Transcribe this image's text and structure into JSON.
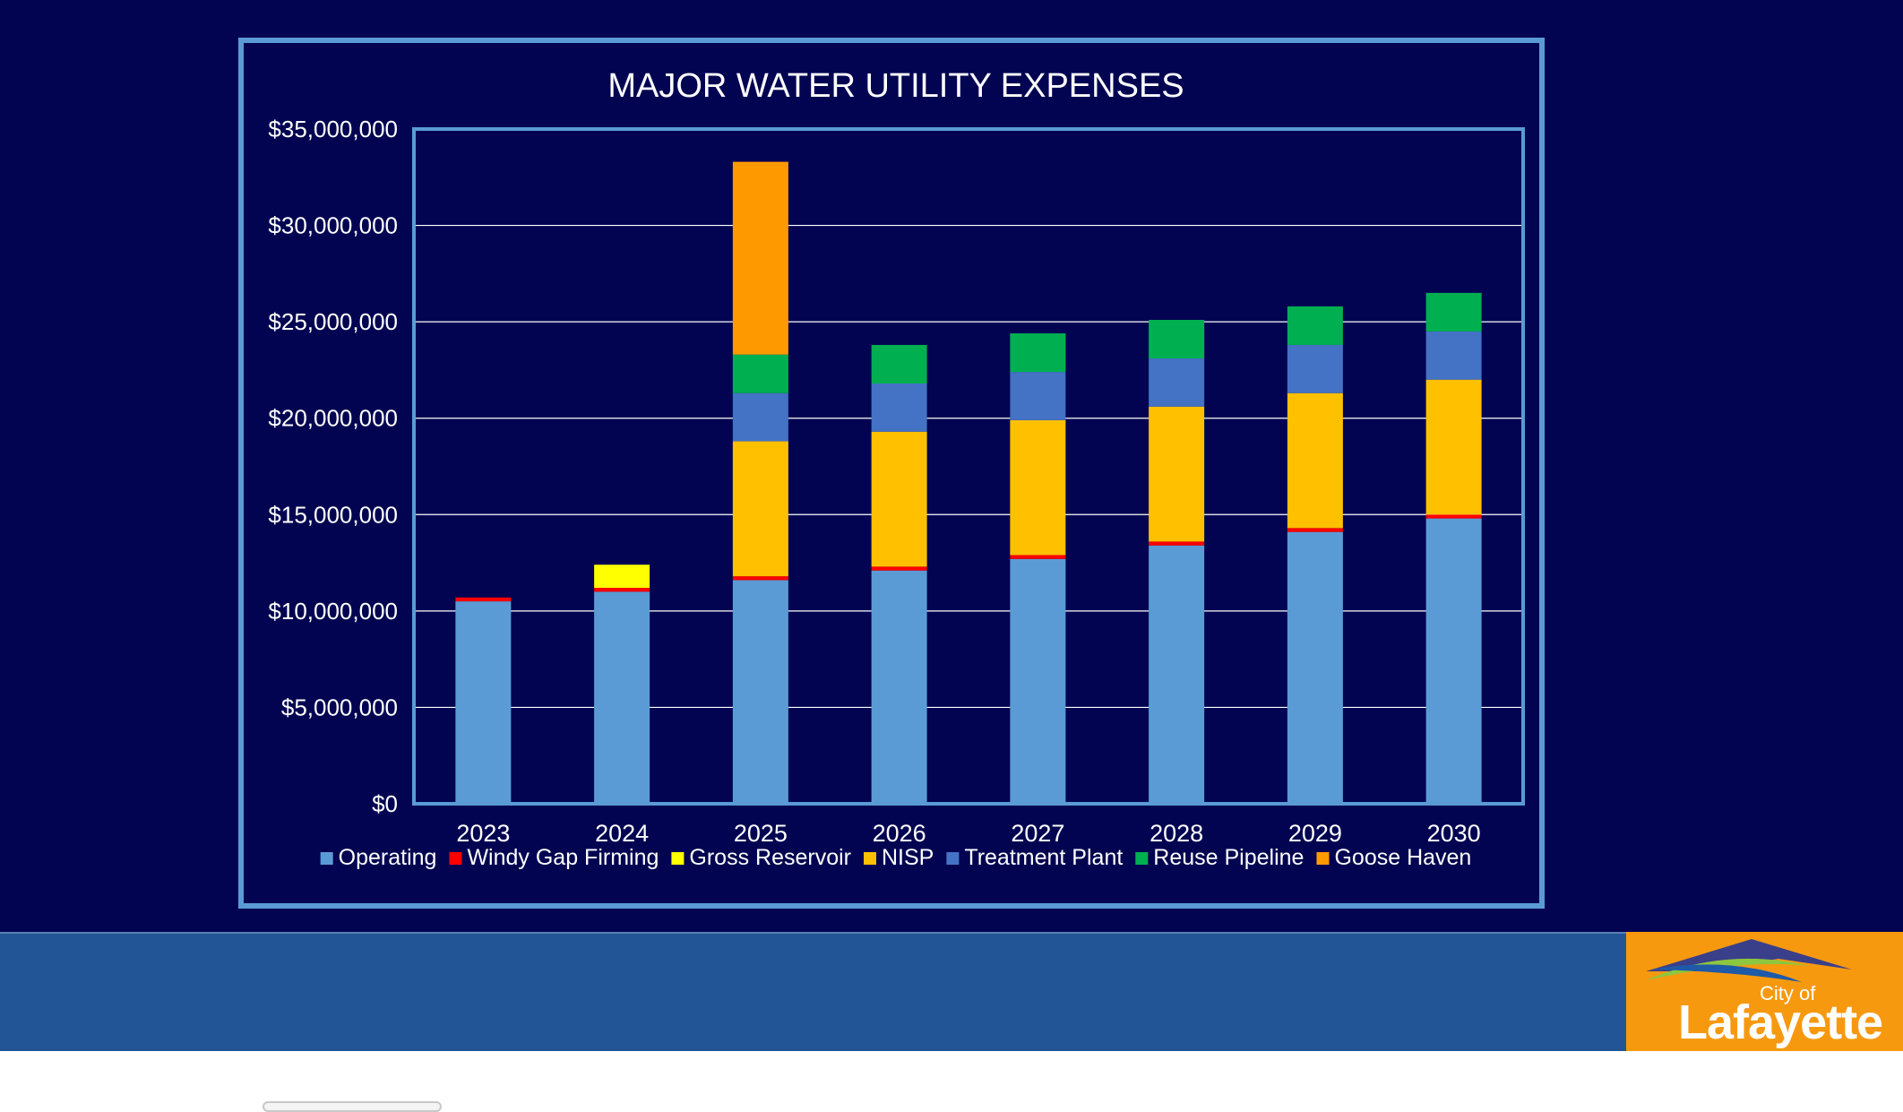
{
  "chart_data": {
    "type": "bar",
    "stacked": true,
    "title": "MAJOR WATER UTILITY EXPENSES",
    "xlabel": "",
    "ylabel": "",
    "categories": [
      "2023",
      "2024",
      "2025",
      "2026",
      "2027",
      "2028",
      "2029",
      "2030"
    ],
    "ylim": [
      0,
      35000000
    ],
    "yticks": [
      0,
      5000000,
      10000000,
      15000000,
      20000000,
      25000000,
      30000000,
      35000000
    ],
    "ytick_labels": [
      "$0",
      "$5,000,000",
      "$10,000,000",
      "$15,000,000",
      "$20,000,000",
      "$25,000,000",
      "$30,000,000",
      "$35,000,000"
    ],
    "grid": true,
    "legend_position": "bottom",
    "series": [
      {
        "name": "Operating",
        "color": "#5b9bd5",
        "values": [
          10500000,
          11000000,
          11600000,
          12100000,
          12700000,
          13400000,
          14100000,
          14800000
        ]
      },
      {
        "name": "Windy Gap Firming",
        "color": "#ff0000",
        "values": [
          200000,
          200000,
          200000,
          200000,
          200000,
          200000,
          200000,
          200000
        ]
      },
      {
        "name": "Gross Reservoir",
        "color": "#ffff00",
        "values": [
          0,
          1200000,
          0,
          0,
          0,
          0,
          0,
          0
        ]
      },
      {
        "name": "NISP",
        "color": "#ffc000",
        "values": [
          0,
          0,
          7000000,
          7000000,
          7000000,
          7000000,
          7000000,
          7000000
        ]
      },
      {
        "name": "Treatment Plant",
        "color": "#4472c4",
        "values": [
          0,
          0,
          2500000,
          2500000,
          2500000,
          2500000,
          2500000,
          2500000
        ]
      },
      {
        "name": "Reuse Pipeline",
        "color": "#00b050",
        "values": [
          0,
          0,
          2000000,
          2000000,
          2000000,
          2000000,
          2000000,
          2000000
        ]
      },
      {
        "name": "Goose Haven",
        "color": "#ff9900",
        "values": [
          0,
          0,
          10000000,
          0,
          0,
          0,
          0,
          0
        ]
      }
    ]
  },
  "logo": {
    "city_of": "City of",
    "name": "Lafayette"
  },
  "colors": {
    "background": "#020451",
    "footer_band": "#225596",
    "logo_box": "#f7990f",
    "frame": "#5b9bd5",
    "gridline": "#ffffff"
  }
}
